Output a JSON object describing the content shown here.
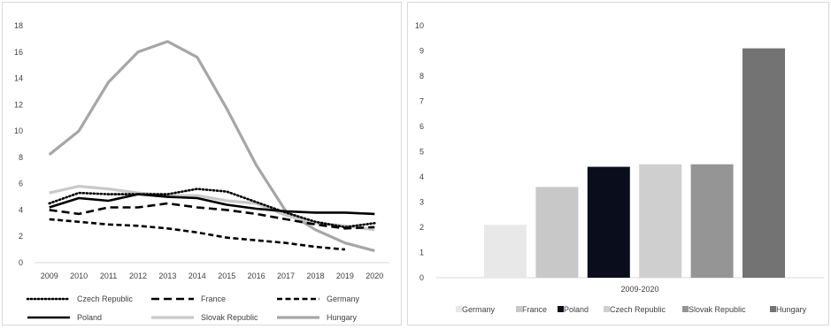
{
  "chart_data": [
    {
      "type": "line",
      "x": [
        "2009",
        "2010",
        "2011",
        "2012",
        "2013",
        "2014",
        "2015",
        "2016",
        "2017",
        "2018",
        "2019",
        "2020"
      ],
      "ylim": [
        0,
        18
      ],
      "yticks": [
        "0",
        "2",
        "4",
        "6",
        "8",
        "10",
        "12",
        "14",
        "16",
        "18"
      ],
      "grid": false,
      "legend_position": "bottom",
      "series": [
        {
          "name": "Czech Republic",
          "style": "dotted",
          "color": "#000000",
          "values": [
            4.5,
            5.3,
            5.2,
            5.2,
            5.2,
            5.6,
            5.4,
            4.6,
            3.8,
            3.1,
            2.7,
            3.0
          ]
        },
        {
          "name": "France",
          "style": "dashed",
          "color": "#000000",
          "values": [
            4.0,
            3.7,
            4.2,
            4.2,
            4.5,
            4.2,
            4.0,
            3.7,
            3.3,
            2.9,
            2.6,
            2.7
          ]
        },
        {
          "name": "Germany",
          "style": "dashed-fine",
          "color": "#000000",
          "values": [
            3.3,
            3.1,
            2.9,
            2.8,
            2.6,
            2.3,
            1.9,
            1.7,
            1.5,
            1.2,
            1.0,
            null
          ]
        },
        {
          "name": "Poland",
          "style": "solid",
          "color": "#000000",
          "values": [
            4.2,
            4.9,
            4.7,
            5.2,
            5.0,
            4.9,
            4.4,
            4.1,
            3.9,
            3.8,
            3.8,
            3.7
          ]
        },
        {
          "name": "Slovak Republic",
          "style": "solid",
          "color": "#c9c9c9",
          "values": [
            5.3,
            5.8,
            5.6,
            5.3,
            5.1,
            5.1,
            4.7,
            4.5,
            3.6,
            3.0,
            2.8,
            2.5
          ]
        },
        {
          "name": "Hungary",
          "style": "solid",
          "color": "#a6a6a6",
          "values": [
            8.2,
            10.0,
            13.7,
            16.0,
            16.8,
            15.6,
            11.7,
            7.4,
            3.9,
            2.5,
            1.5,
            0.9
          ]
        }
      ]
    },
    {
      "type": "bar",
      "xlabel": "2009-2020",
      "ylim": [
        0,
        10
      ],
      "yticks": [
        "0",
        "1",
        "2",
        "3",
        "4",
        "5",
        "6",
        "7",
        "8",
        "9",
        "10"
      ],
      "grid": false,
      "legend_position": "bottom",
      "series": [
        {
          "name": "Germany",
          "value": 2.1,
          "color": "#e8e8e8"
        },
        {
          "name": "France",
          "value": 3.6,
          "color": "#c8c8c8"
        },
        {
          "name": "Poland",
          "value": 4.4,
          "color": "#0a0d1c"
        },
        {
          "name": "Czech Republic",
          "value": 4.5,
          "color": "#cfcfcf"
        },
        {
          "name": "Slovak Republic",
          "value": 4.5,
          "color": "#959595"
        },
        {
          "name": "Hungary",
          "value": 9.1,
          "color": "#737373"
        }
      ]
    }
  ]
}
